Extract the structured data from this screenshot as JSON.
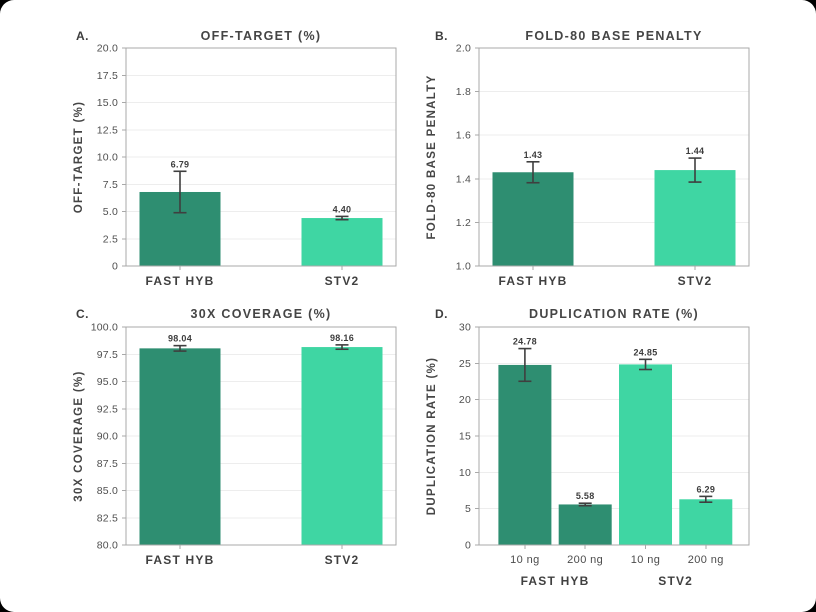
{
  "figure": {
    "background": "#000000",
    "card_color": "#ffffff",
    "bar_color_dark": "#2E8E71",
    "bar_color_light": "#3FD6A3",
    "spine_color": "#a9a9a9",
    "grid_color": "#ededed",
    "errorbar_color": "#3f3f3f"
  },
  "chart_data": [
    {
      "type": "bar",
      "panel_label": "A.",
      "title": "OFF-TARGET (%)",
      "ylabel": "OFF-TARGET (%)",
      "ylim": [
        0,
        20
      ],
      "yticks": [
        0,
        2.5,
        5,
        7.5,
        10,
        12.5,
        15,
        17.5,
        20
      ],
      "ytick_labels": [
        "0",
        "2.5",
        "5.0",
        "7.5",
        "10.0",
        "12.5",
        "15.0",
        "17.5",
        "20.0"
      ],
      "categories": [
        "FAST HYB",
        "STV2"
      ],
      "values": [
        6.79,
        4.4
      ],
      "value_labels": [
        "6.79",
        "4.40"
      ],
      "errors": [
        1.9,
        0.15
      ],
      "bar_colors": [
        "#2E8E71",
        "#3FD6A3"
      ],
      "grid": true,
      "groups": null
    },
    {
      "type": "bar",
      "panel_label": "B.",
      "title": "FOLD-80 BASE PENALTY",
      "ylabel": "FOLD-80 BASE PENALTY",
      "ylim": [
        1.0,
        2.0
      ],
      "yticks": [
        1.0,
        1.2,
        1.4,
        1.6,
        1.8,
        2.0
      ],
      "ytick_labels": [
        "1.0",
        "1.2",
        "1.4",
        "1.6",
        "1.8",
        "2.0"
      ],
      "categories": [
        "FAST HYB",
        "STV2"
      ],
      "values": [
        1.43,
        1.44
      ],
      "value_labels": [
        "1.43",
        "1.44"
      ],
      "errors": [
        0.048,
        0.055
      ],
      "bar_colors": [
        "#2E8E71",
        "#3FD6A3"
      ],
      "grid": true,
      "groups": null
    },
    {
      "type": "bar",
      "panel_label": "C.",
      "title": "30X COVERAGE (%)",
      "ylabel": "30X COVERAGE (%)",
      "ylim": [
        80,
        100
      ],
      "yticks": [
        80,
        82.5,
        85,
        87.5,
        90,
        92.5,
        95,
        97.5,
        100
      ],
      "ytick_labels": [
        "80.0",
        "82.5",
        "85.0",
        "87.5",
        "90.0",
        "92.5",
        "95.0",
        "97.5",
        "100.0"
      ],
      "categories": [
        "FAST HYB",
        "STV2"
      ],
      "values": [
        98.04,
        98.16
      ],
      "value_labels": [
        "98.04",
        "98.16"
      ],
      "errors": [
        0.25,
        0.2
      ],
      "bar_colors": [
        "#2E8E71",
        "#3FD6A3"
      ],
      "grid": true,
      "groups": null
    },
    {
      "type": "bar",
      "panel_label": "D.",
      "title": "DUPLICATION RATE (%)",
      "ylabel": "DUPLICATION RATE (%)",
      "ylim": [
        0,
        30
      ],
      "yticks": [
        0,
        5,
        10,
        15,
        20,
        25,
        30
      ],
      "ytick_labels": [
        "0",
        "5",
        "10",
        "15",
        "20",
        "25",
        "30"
      ],
      "categories": [
        "10 ng",
        "200 ng",
        "10 ng",
        "200 ng"
      ],
      "values": [
        24.78,
        5.58,
        24.85,
        6.29
      ],
      "value_labels": [
        "24.78",
        "5.58",
        "24.85",
        "6.29"
      ],
      "errors": [
        2.25,
        0.17,
        0.7,
        0.4
      ],
      "bar_colors": [
        "#2E8E71",
        "#2E8E71",
        "#3FD6A3",
        "#3FD6A3"
      ],
      "grid": true,
      "groups": [
        {
          "label": "FAST HYB",
          "bars": [
            0,
            1
          ]
        },
        {
          "label": "STV2",
          "bars": [
            2,
            3
          ]
        }
      ]
    }
  ]
}
